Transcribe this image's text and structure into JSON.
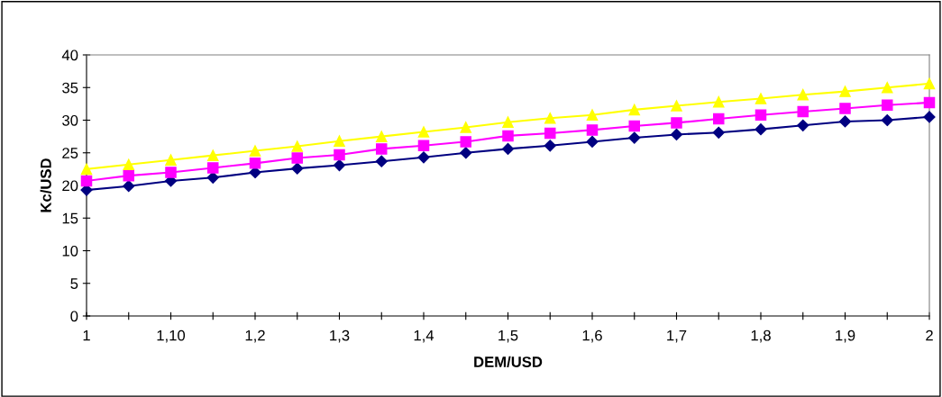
{
  "chart_data": {
    "type": "line",
    "xlabel": "DEM/USD",
    "ylabel": "Kc/USD",
    "categories": [
      "1",
      null,
      "1,10",
      null,
      "1,2",
      null,
      "1,3",
      null,
      "1,4",
      null,
      "1,5",
      null,
      "1,6",
      null,
      "1,7",
      null,
      "1,8",
      null,
      "1,9",
      null,
      "2"
    ],
    "series": [
      {
        "color": "#000080",
        "marker": "diamond",
        "values": [
          19.3,
          19.9,
          20.7,
          21.2,
          22.0,
          22.6,
          23.1,
          23.7,
          24.3,
          25.0,
          25.6,
          26.1,
          26.7,
          27.3,
          27.8,
          28.1,
          28.6,
          29.2,
          29.8,
          30.0,
          30.5
        ]
      },
      {
        "color": "#ff00ff",
        "marker": "square",
        "values": [
          20.7,
          21.5,
          22.0,
          22.7,
          23.4,
          24.2,
          24.7,
          25.6,
          26.1,
          26.7,
          27.6,
          28.0,
          28.5,
          29.1,
          29.6,
          30.2,
          30.8,
          31.3,
          31.8,
          32.3,
          32.7
        ]
      },
      {
        "color": "#ffff00",
        "marker": "triangle",
        "values": [
          22.5,
          23.2,
          23.9,
          24.6,
          25.3,
          26.0,
          26.8,
          27.5,
          28.2,
          28.9,
          29.7,
          30.3,
          30.8,
          31.6,
          32.2,
          32.8,
          33.3,
          33.9,
          34.4,
          35.0,
          35.6
        ]
      }
    ],
    "ylim": [
      0,
      40
    ],
    "yticks": [
      0,
      5,
      10,
      15,
      20,
      25,
      30,
      35,
      40
    ],
    "grid": false,
    "legend": false
  }
}
